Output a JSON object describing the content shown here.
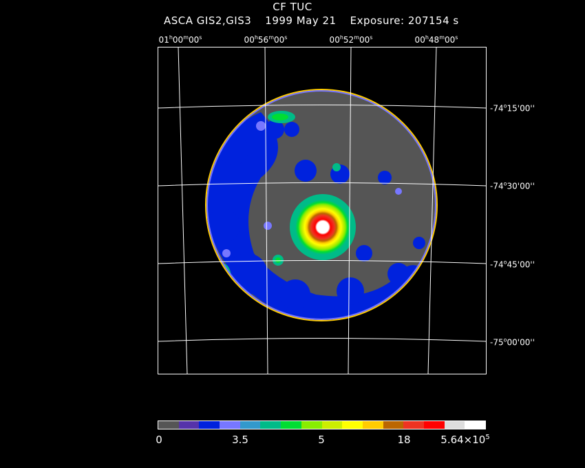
{
  "title": "CF TUC",
  "subtitle": {
    "instrument": "ASCA GIS2,GIS3",
    "date": "1999 May 21",
    "exposure": "Exposure: 207154 s"
  },
  "ra_labels": [
    {
      "h": "01",
      "m": "00",
      "s": "00"
    },
    {
      "h": "00",
      "m": "56",
      "s": "00"
    },
    {
      "h": "00",
      "m": "52",
      "s": "00"
    },
    {
      "h": "00",
      "m": "48",
      "s": "00"
    }
  ],
  "dec_labels": [
    {
      "d": "-74",
      "m": "15",
      "s": "00"
    },
    {
      "d": "-74",
      "m": "30",
      "s": "00"
    },
    {
      "d": "-74",
      "m": "45",
      "s": "00"
    },
    {
      "d": "-75",
      "m": "00",
      "s": "00"
    }
  ],
  "colorbar": {
    "colors": [
      "#555555",
      "#5533aa",
      "#0022dd",
      "#7777ff",
      "#3399cc",
      "#00bb88",
      "#00dd33",
      "#88ee00",
      "#ccee00",
      "#ffff00",
      "#ffcc00",
      "#bb6600",
      "#ee3322",
      "#ff0000",
      "#dddddd",
      "#ffffff"
    ],
    "labels": {
      "l0": "0",
      "l1": "3.5",
      "l2": "5",
      "l3": "18",
      "l4_base": "5.64×10",
      "l4_exp": "5"
    }
  }
}
